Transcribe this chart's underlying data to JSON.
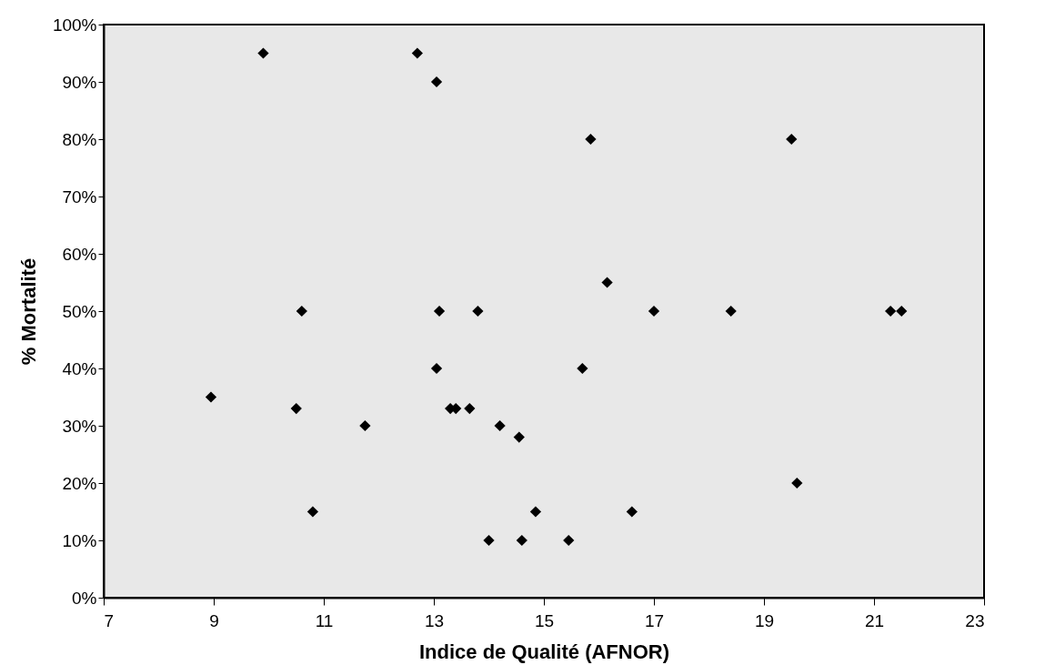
{
  "chart_data": {
    "type": "scatter",
    "xlabel": "Indice de Qualité (AFNOR)",
    "ylabel": "% Mortalité",
    "xlim": [
      7,
      23
    ],
    "xticks": [
      7,
      9,
      11,
      13,
      15,
      17,
      19,
      21,
      23
    ],
    "ylim": [
      0,
      100
    ],
    "yticks": [
      {
        "value": 0,
        "label": "0%"
      },
      {
        "value": 10,
        "label": "10%"
      },
      {
        "value": 20,
        "label": "20%"
      },
      {
        "value": 30,
        "label": "30%"
      },
      {
        "value": 40,
        "label": "40%"
      },
      {
        "value": 50,
        "label": "50%"
      },
      {
        "value": 60,
        "label": "60%"
      },
      {
        "value": 70,
        "label": "70%"
      },
      {
        "value": 80,
        "label": "80%"
      },
      {
        "value": 90,
        "label": "90%"
      },
      {
        "value": 100,
        "label": "100%"
      }
    ],
    "grid": false,
    "marker": "diamond",
    "legend": false,
    "series": [
      {
        "color": "#000000",
        "x": [
          8.95,
          9.9,
          10.6,
          10.5,
          10.8,
          11.75,
          12.7,
          13.05,
          13.05,
          13.1,
          13.3,
          13.4,
          13.65,
          13.8,
          14.2,
          14.55,
          14.0,
          14.6,
          14.85,
          15.45,
          15.7,
          15.85,
          16.15,
          16.6,
          17.0,
          18.4,
          19.5,
          19.6,
          21.3,
          21.5
        ],
        "values": [
          35,
          95,
          50,
          33,
          15,
          30,
          95,
          90,
          40,
          50,
          33,
          33,
          33,
          50,
          30,
          28,
          10,
          10,
          15,
          10,
          40,
          80,
          55,
          15,
          50,
          50,
          80,
          20,
          50,
          50
        ]
      }
    ]
  }
}
